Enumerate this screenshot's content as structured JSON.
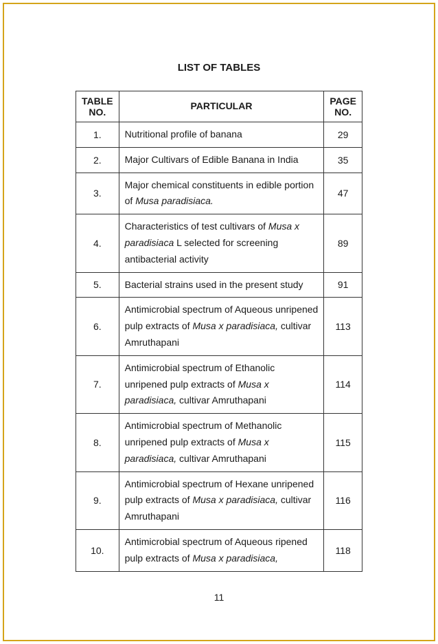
{
  "title": "LIST OF TABLES",
  "headers": {
    "col1_line1": "TABLE",
    "col1_line2": "NO.",
    "col2": "PARTICULAR",
    "col3_line1": "PAGE",
    "col3_line2": "NO."
  },
  "rows": [
    {
      "num": "1.",
      "particular_plain": "Nutritional profile of banana",
      "page": "29"
    },
    {
      "num": "2.",
      "particular_plain": "Major Cultivars of Edible Banana in India",
      "page": "35"
    },
    {
      "num": "3.",
      "particular_pre": "Major chemical constituents in edible portion of ",
      "particular_italic": "Musa paradisiaca.",
      "particular_post": "",
      "page": "47"
    },
    {
      "num": "4.",
      "particular_pre": "Characteristics of test cultivars of ",
      "particular_italic": "Musa x paradisiaca",
      "particular_post": " L selected for screening antibacterial activity",
      "page": "89"
    },
    {
      "num": "5.",
      "particular_plain": "Bacterial strains used in the present study",
      "page": "91"
    },
    {
      "num": "6.",
      "particular_pre": "Antimicrobial spectrum of Aqueous unripened pulp extracts of ",
      "particular_italic": "Musa x paradisiaca,",
      "particular_post": " cultivar Amruthapani",
      "page": "113"
    },
    {
      "num": "7.",
      "particular_pre": "Antimicrobial spectrum of Ethanolic unripened pulp extracts of ",
      "particular_italic": "Musa x paradisiaca,",
      "particular_post": " cultivar Amruthapani",
      "page": "114"
    },
    {
      "num": "8.",
      "particular_pre": "Antimicrobial spectrum of Methanolic unripened pulp extracts of ",
      "particular_italic": "Musa x paradisiaca,",
      "particular_post": " cultivar Amruthapani",
      "page": "115"
    },
    {
      "num": "9.",
      "particular_pre": "Antimicrobial spectrum of Hexane unripened pulp extracts of ",
      "particular_italic": "Musa x paradisiaca,",
      "particular_post": " cultivar Amruthapani",
      "page": "116"
    },
    {
      "num": "10.",
      "particular_pre": "Antimicrobial spectrum of Aqueous ripened pulp extracts of ",
      "particular_italic": "Musa x paradisiaca,",
      "particular_post": "",
      "page": "118"
    }
  ],
  "page_number": "11",
  "colors": {
    "border": "#d4a419",
    "text": "#1a1a1a",
    "table_border": "#333333",
    "background": "#ffffff"
  },
  "styling": {
    "title_fontsize": 15,
    "cell_fontsize": 14,
    "font_family": "Arial",
    "col1_width": 60,
    "col3_width": 55,
    "line_height": 1.7
  }
}
